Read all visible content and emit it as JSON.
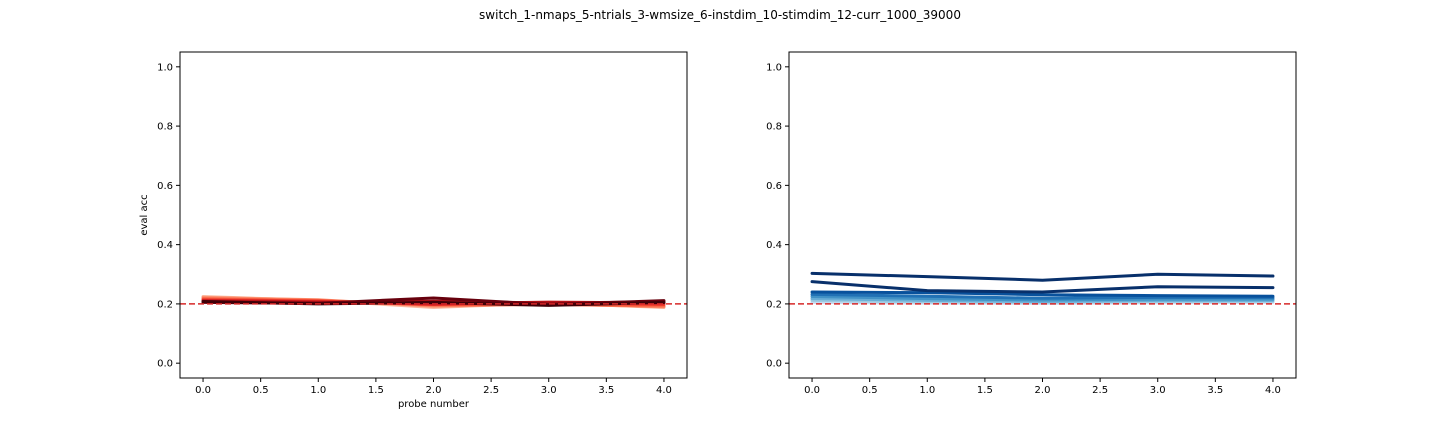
{
  "figure": {
    "title": "switch_1-nmaps_5-ntrials_3-wmsize_6-instdim_10-stimdim_12-curr_1000_39000"
  },
  "chart_data": [
    {
      "type": "line",
      "panel": "left",
      "title": "",
      "xlabel": "probe number",
      "ylabel": "eval acc",
      "xlim": [
        -0.2,
        4.2
      ],
      "ylim": [
        -0.05,
        1.05
      ],
      "xticks": [
        0.0,
        0.5,
        1.0,
        1.5,
        2.0,
        2.5,
        3.0,
        3.5,
        4.0
      ],
      "xtick_labels": [
        "0.0",
        "0.5",
        "1.0",
        "1.5",
        "2.0",
        "2.5",
        "3.0",
        "3.5",
        "4.0"
      ],
      "yticks": [
        0.0,
        0.2,
        0.4,
        0.6,
        0.8,
        1.0
      ],
      "ytick_labels": [
        "0.0",
        "0.2",
        "0.4",
        "0.6",
        "0.8",
        "1.0"
      ],
      "reference_line": {
        "y": 0.2,
        "color": "#d62728",
        "style": "dashed"
      },
      "x": [
        0,
        1,
        2,
        3,
        4
      ],
      "series": [
        {
          "color": "#fcbba1",
          "values": [
            0.225,
            0.212,
            0.188,
            0.203,
            0.188
          ]
        },
        {
          "color": "#fc9272",
          "values": [
            0.222,
            0.214,
            0.192,
            0.2,
            0.19
          ]
        },
        {
          "color": "#fb6a4a",
          "values": [
            0.218,
            0.212,
            0.196,
            0.198,
            0.193
          ]
        },
        {
          "color": "#ef3b2c",
          "values": [
            0.214,
            0.21,
            0.198,
            0.203,
            0.198
          ]
        },
        {
          "color": "#cb181d",
          "values": [
            0.211,
            0.207,
            0.2,
            0.206,
            0.203
          ]
        },
        {
          "color": "#a50f15",
          "values": [
            0.208,
            0.204,
            0.209,
            0.203,
            0.207
          ]
        },
        {
          "color": "#67000d",
          "values": [
            0.205,
            0.202,
            0.22,
            0.198,
            0.211
          ]
        },
        {
          "color": "#400008",
          "values": [
            0.208,
            0.2,
            0.205,
            0.195,
            0.205
          ]
        }
      ]
    },
    {
      "type": "line",
      "panel": "right",
      "title": "",
      "xlabel": "",
      "ylabel": "",
      "xlim": [
        -0.2,
        4.2
      ],
      "ylim": [
        -0.05,
        1.05
      ],
      "xticks": [
        0.0,
        0.5,
        1.0,
        1.5,
        2.0,
        2.5,
        3.0,
        3.5,
        4.0
      ],
      "xtick_labels": [
        "0.0",
        "0.5",
        "1.0",
        "1.5",
        "2.0",
        "2.5",
        "3.0",
        "3.5",
        "4.0"
      ],
      "yticks": [
        0.0,
        0.2,
        0.4,
        0.6,
        0.8,
        1.0
      ],
      "ytick_labels": [
        "0.0",
        "0.2",
        "0.4",
        "0.6",
        "0.8",
        "1.0"
      ],
      "reference_line": {
        "y": 0.2,
        "color": "#d62728",
        "style": "dashed"
      },
      "x": [
        0,
        1,
        2,
        3,
        4
      ],
      "series": [
        {
          "color": "#c6dbef",
          "values": [
            0.205,
            0.203,
            0.202,
            0.204,
            0.205
          ]
        },
        {
          "color": "#9ecae1",
          "values": [
            0.212,
            0.207,
            0.205,
            0.208,
            0.209
          ]
        },
        {
          "color": "#6baed6",
          "values": [
            0.218,
            0.212,
            0.208,
            0.212,
            0.212
          ]
        },
        {
          "color": "#4292c6",
          "values": [
            0.225,
            0.218,
            0.213,
            0.216,
            0.216
          ]
        },
        {
          "color": "#2171b5",
          "values": [
            0.232,
            0.226,
            0.219,
            0.222,
            0.221
          ]
        },
        {
          "color": "#08519c",
          "values": [
            0.24,
            0.238,
            0.231,
            0.228,
            0.226
          ]
        },
        {
          "color": "#08306b",
          "values": [
            0.275,
            0.245,
            0.24,
            0.258,
            0.255
          ]
        },
        {
          "color": "#08306b",
          "values": [
            0.303,
            0.292,
            0.28,
            0.3,
            0.294
          ]
        }
      ]
    }
  ]
}
